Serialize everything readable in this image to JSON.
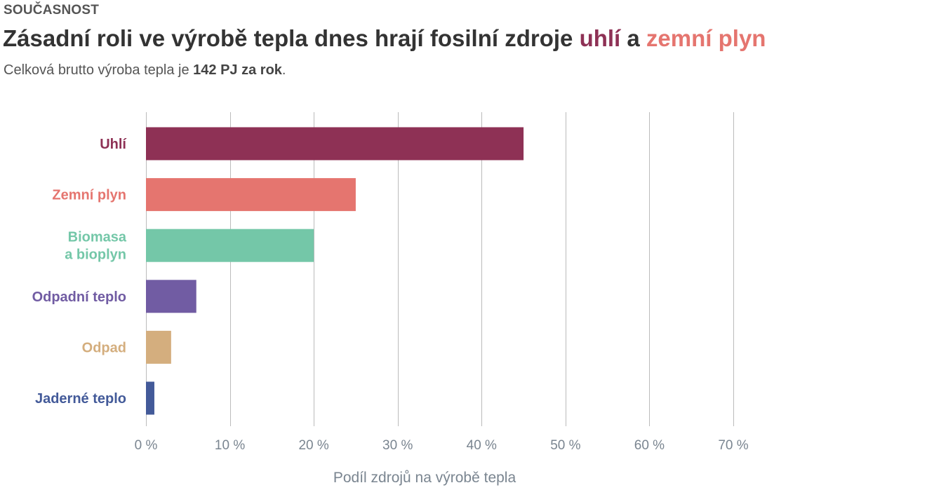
{
  "header": {
    "kicker": "SOUČASNOST",
    "title_main": "Zásadní roli ve výrobě tepla dnes hrají fosilní zdroje ",
    "title_hl1": "uhlí",
    "title_mid": " a ",
    "title_hl2": "zemní plyn",
    "subtitle_pre": "Celková brutto výroba tepla je ",
    "subtitle_bold": "142 PJ za rok",
    "subtitle_post": "."
  },
  "colors": {
    "uhli": "#8e3155",
    "plyn": "#e5756f",
    "biomasa": "#74c7a8",
    "odpadni_teplo": "#715ca3",
    "odpad": "#d4ae7e",
    "jaderne": "#435a99"
  },
  "chart_data": {
    "type": "bar",
    "orientation": "horizontal",
    "categories": [
      [
        "Uhlí"
      ],
      [
        "Zemní plyn"
      ],
      [
        "Biomasa",
        "a bioplyn"
      ],
      [
        "Odpadní teplo"
      ],
      [
        "Odpad"
      ],
      [
        "Jaderné teplo"
      ]
    ],
    "values": [
      45,
      25,
      20,
      6,
      3,
      1
    ],
    "bar_colors": [
      "#8e3155",
      "#e5756f",
      "#74c7a8",
      "#715ca3",
      "#d4ae7e",
      "#435a99"
    ],
    "xlim": [
      0,
      70
    ],
    "xticks": [
      0,
      10,
      20,
      30,
      40,
      50,
      60,
      70
    ],
    "xtick_labels": [
      "0 %",
      "10 %",
      "20 %",
      "30 %",
      "40 %",
      "50 %",
      "60 %",
      "70 %"
    ],
    "xlabel": "Podíl zdrojů na výrobě tepla",
    "grid": true
  }
}
